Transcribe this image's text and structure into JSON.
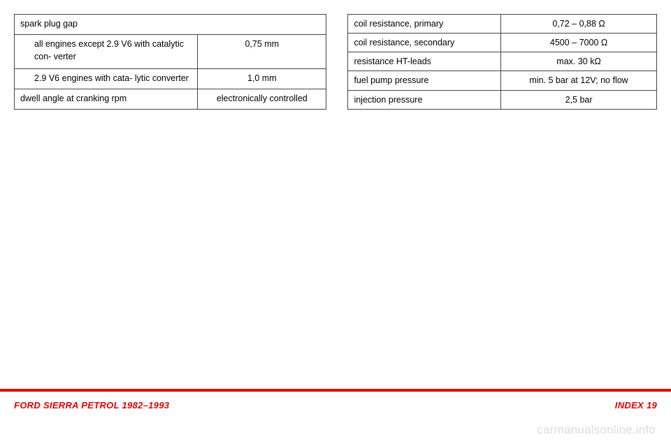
{
  "left_table": {
    "header": "spark plug gap",
    "rows": [
      {
        "label": "all engines except 2.9 V6  with catalytic con-\nverter",
        "value": "0,75 mm"
      },
      {
        "label": "2.9 V6 engines with cata-\nlytic converter",
        "value": "1,0 mm"
      }
    ],
    "final": {
      "label": "dwell angle at cranking rpm",
      "value": "electronically controlled"
    }
  },
  "right_table": {
    "rows": [
      {
        "label": "coil resistance, primary",
        "value": "0,72 – 0,88 Ω"
      },
      {
        "label": "coil resistance, secondary",
        "value": "4500 – 7000 Ω"
      },
      {
        "label": "resistance HT-leads",
        "value": "max. 30 kΩ"
      },
      {
        "label": "fuel pump pressure",
        "value": "min. 5 bar at 12V; no flow"
      },
      {
        "label": "injection pressure",
        "value": "2,5 bar"
      }
    ]
  },
  "footer": {
    "left": "FORD SIERRA PETROL 1982–1993",
    "right": "INDEX   19"
  },
  "watermark": "carmanualsonline.info"
}
